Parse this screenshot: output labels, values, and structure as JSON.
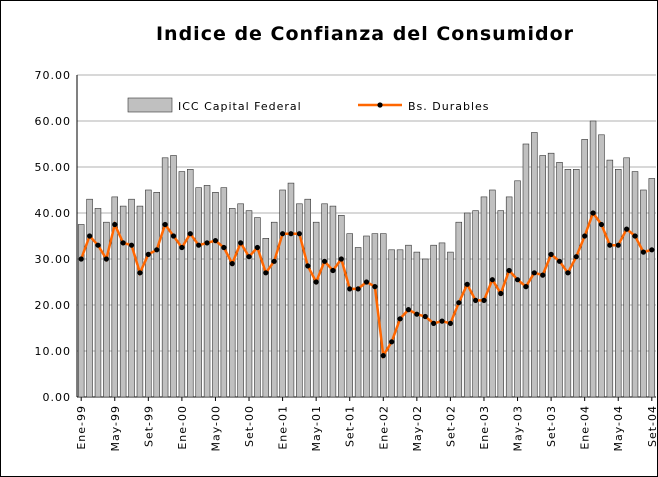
{
  "chart_data": {
    "type": "bar_line",
    "title": "Indice de Confianza del Consumidor",
    "categories": [
      "Ene-99",
      null,
      null,
      null,
      "May-99",
      null,
      null,
      null,
      "Set-99",
      null,
      null,
      null,
      "Ene-00",
      null,
      null,
      null,
      "May-00",
      null,
      null,
      null,
      "Set-00",
      null,
      null,
      null,
      "Ene-01",
      null,
      null,
      null,
      "May-01",
      null,
      null,
      null,
      "Set-01",
      null,
      null,
      null,
      "Ene-02",
      null,
      null,
      null,
      "May-02",
      null,
      null,
      null,
      "Set-02",
      null,
      null,
      null,
      "Ene-03",
      null,
      null,
      null,
      "May-03",
      null,
      null,
      null,
      "Set-03",
      null,
      null,
      null,
      "Ene-04",
      null,
      null,
      null,
      "May-04",
      null,
      null,
      null,
      "Set-04"
    ],
    "series": [
      {
        "name": "ICC Capital Federal",
        "type": "bar",
        "color": "#c0c0c0",
        "values": [
          37.5,
          43,
          41,
          38,
          43.5,
          41.5,
          43,
          41.5,
          45,
          44.5,
          52,
          52.5,
          49,
          49.5,
          45.5,
          46,
          44.5,
          45.5,
          41,
          42,
          40.5,
          39,
          34.5,
          38,
          45,
          46.5,
          42,
          43,
          38,
          42,
          41.5,
          39.5,
          35.5,
          32.5,
          35,
          35.5,
          35.5,
          32,
          32,
          33,
          31.5,
          30,
          33,
          33.5,
          31.5,
          38,
          40,
          40.5,
          43.5,
          45,
          40.5,
          43.5,
          47,
          55,
          57.5,
          52.5,
          53,
          51,
          49.5,
          49.5,
          56,
          60,
          57,
          51.5,
          49.5,
          52,
          49,
          45,
          47.5
        ]
      },
      {
        "name": "Bs. Durables",
        "type": "line",
        "color": "#ff6600",
        "values": [
          30,
          35,
          33,
          30,
          37.5,
          33.5,
          33,
          27,
          31,
          32,
          37.5,
          35,
          32.5,
          35.5,
          33,
          33.5,
          34,
          32.5,
          29,
          33.5,
          30.5,
          32.5,
          27,
          29.5,
          35.5,
          35.5,
          35.5,
          28.5,
          25,
          29.5,
          27.5,
          30,
          23.5,
          23.5,
          25,
          24,
          9,
          12,
          17,
          19,
          18,
          17.5,
          16,
          16.5,
          16,
          20.5,
          24.5,
          21,
          21,
          25.5,
          22.5,
          27.5,
          25.5,
          24,
          27,
          26.5,
          31,
          29.5,
          27,
          30.5,
          35,
          40,
          37.5,
          33,
          33,
          36.5,
          35,
          31.5,
          32
        ]
      }
    ],
    "ylim": [
      0,
      70
    ],
    "yticks": [
      {
        "value": 0,
        "label": "0.00"
      },
      {
        "value": 10,
        "label": "10.00"
      },
      {
        "value": 20,
        "label": "20.00"
      },
      {
        "value": 30,
        "label": "30.00"
      },
      {
        "value": 40,
        "label": "40.00"
      },
      {
        "value": 50,
        "label": "50.00"
      },
      {
        "value": 60,
        "label": "60.00"
      },
      {
        "value": 70,
        "label": "70.00"
      }
    ],
    "grid": true
  }
}
